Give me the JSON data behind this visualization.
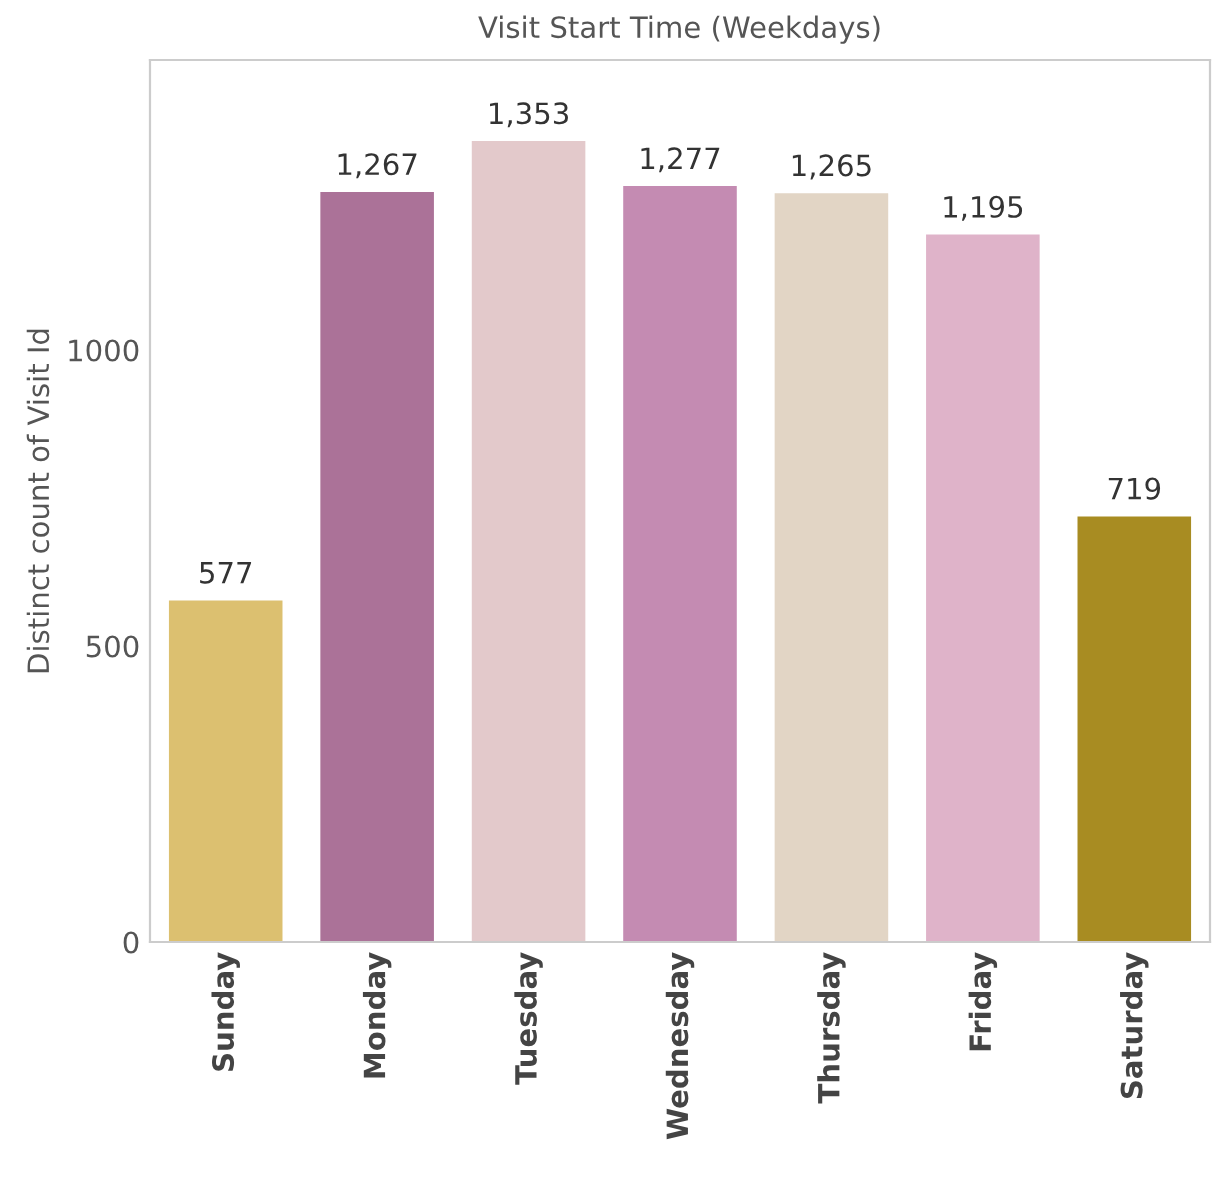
{
  "chart_data": {
    "type": "bar",
    "title": "Visit Start Time (Weekdays)",
    "ylabel": "Distinct count of Visit Id",
    "categories": [
      "Sunday",
      "Monday",
      "Tuesday",
      "Wednesday",
      "Thursday",
      "Friday",
      "Saturday"
    ],
    "values": [
      577,
      1267,
      1353,
      1277,
      1265,
      1195,
      719
    ],
    "value_labels": [
      "577",
      "1,267",
      "1,353",
      "1,277",
      "1,265",
      "1,195",
      "719"
    ],
    "colors": [
      "#dcc070",
      "#ab7298",
      "#e3c9cb",
      "#c48bb2",
      "#e2d5c5",
      "#dfb3c9",
      "#a88c22"
    ],
    "ylim": [
      0,
      1490
    ],
    "yticks": [
      0,
      500,
      1000
    ],
    "grid": false,
    "legend": false
  }
}
